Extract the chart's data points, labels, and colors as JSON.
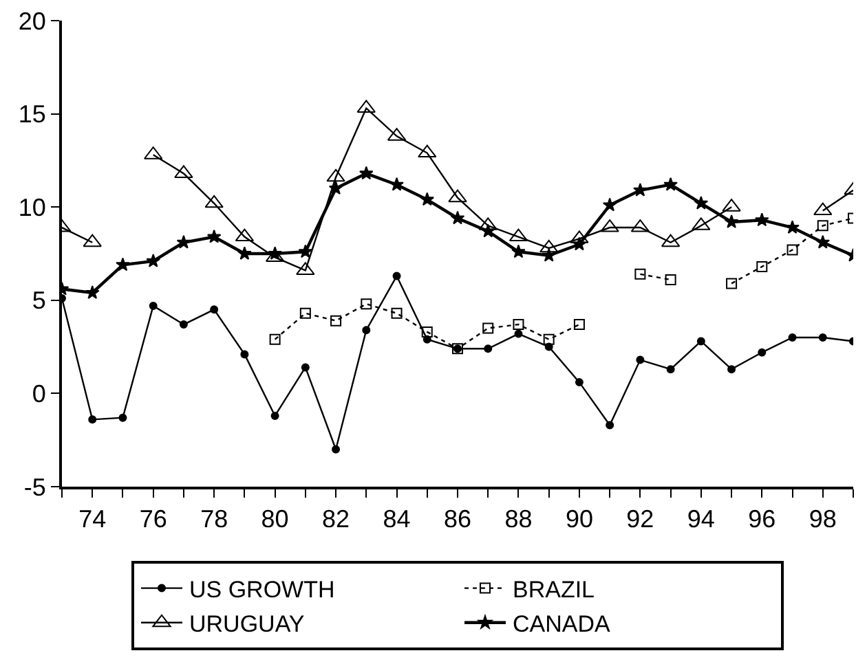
{
  "chart_data": {
    "type": "line",
    "x": [
      73,
      74,
      75,
      76,
      77,
      78,
      79,
      80,
      81,
      82,
      83,
      84,
      85,
      86,
      87,
      88,
      89,
      90,
      91,
      92,
      93,
      94,
      95,
      96,
      97,
      98,
      99
    ],
    "series": [
      {
        "name": "US GROWTH",
        "color": "#000000",
        "marker": "circle",
        "line_style": "solid",
        "values": [
          5.1,
          -1.4,
          -1.3,
          4.7,
          3.7,
          4.5,
          2.1,
          -1.2,
          1.4,
          -3.0,
          3.4,
          6.3,
          2.9,
          2.4,
          2.4,
          3.2,
          2.5,
          0.6,
          -1.7,
          1.8,
          1.3,
          2.8,
          1.3,
          2.2,
          3.0,
          3.0,
          2.8
        ]
      },
      {
        "name": "BRAZIL",
        "color": "#000000",
        "marker": "square",
        "line_style": "dotted",
        "values": [
          null,
          null,
          null,
          null,
          null,
          null,
          null,
          2.9,
          4.3,
          3.9,
          4.8,
          4.3,
          3.3,
          2.4,
          3.5,
          3.7,
          2.9,
          3.7,
          null,
          6.4,
          6.1,
          null,
          5.9,
          6.8,
          7.7,
          9.0,
          9.4
        ]
      },
      {
        "name": "URUGUAY",
        "color": "#000000",
        "marker": "triangle",
        "line_style": "solid",
        "values": [
          8.9,
          8.1,
          null,
          12.8,
          11.8,
          10.2,
          8.4,
          7.3,
          6.6,
          11.6,
          15.3,
          13.8,
          12.9,
          10.5,
          9.0,
          8.4,
          7.8,
          8.3,
          8.9,
          8.9,
          8.1,
          9.0,
          10.0,
          null,
          null,
          9.8,
          10.9
        ]
      },
      {
        "name": "CANADA",
        "color": "#000000",
        "marker": "star",
        "line_style": "solid",
        "values": [
          5.6,
          5.4,
          6.9,
          7.1,
          8.1,
          8.4,
          7.5,
          7.5,
          7.6,
          11.0,
          11.8,
          11.2,
          10.4,
          9.4,
          8.7,
          7.6,
          7.4,
          8.0,
          10.1,
          10.9,
          11.2,
          10.2,
          9.2,
          9.3,
          8.9,
          8.1,
          7.4
        ]
      }
    ],
    "xlim": [
      73,
      99
    ],
    "xticks": [
      {
        "value": 73,
        "label": null
      },
      74,
      {
        "value": 75,
        "label": null
      },
      76,
      {
        "value": 77,
        "label": null
      },
      78,
      {
        "value": 79,
        "label": null
      },
      80,
      {
        "value": 81,
        "label": null
      },
      82,
      {
        "value": 83,
        "label": null
      },
      84,
      {
        "value": 85,
        "label": null
      },
      86,
      {
        "value": 87,
        "label": null
      },
      88,
      {
        "value": 89,
        "label": null
      },
      90,
      {
        "value": 91,
        "label": null
      },
      92,
      {
        "value": 93,
        "label": null
      },
      94,
      {
        "value": 95,
        "label": null
      },
      96,
      {
        "value": 97,
        "label": null
      },
      98,
      {
        "value": 99,
        "label": null
      }
    ],
    "ylim": [
      -5,
      20
    ],
    "yticks": [
      -5,
      0,
      5,
      10,
      15,
      20
    ],
    "legend": "bottom"
  }
}
